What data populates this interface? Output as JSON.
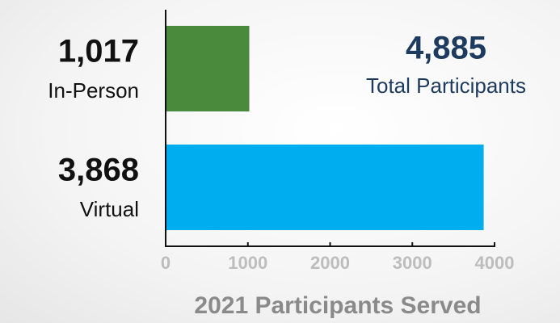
{
  "chart_data": {
    "type": "bar",
    "orientation": "horizontal",
    "categories": [
      "In-Person",
      "Virtual"
    ],
    "values": [
      1017,
      3868
    ],
    "value_labels": [
      "1,017",
      "3,868"
    ],
    "colors": [
      "#4a8a3c",
      "#00adef"
    ],
    "xlim": [
      0,
      4000
    ],
    "xticks": [
      0,
      1000,
      2000,
      3000,
      4000
    ],
    "xlabel": "2021 Participants Served",
    "annotations": [
      {
        "text": "4,885"
      },
      {
        "text": "Total Participants"
      }
    ]
  }
}
